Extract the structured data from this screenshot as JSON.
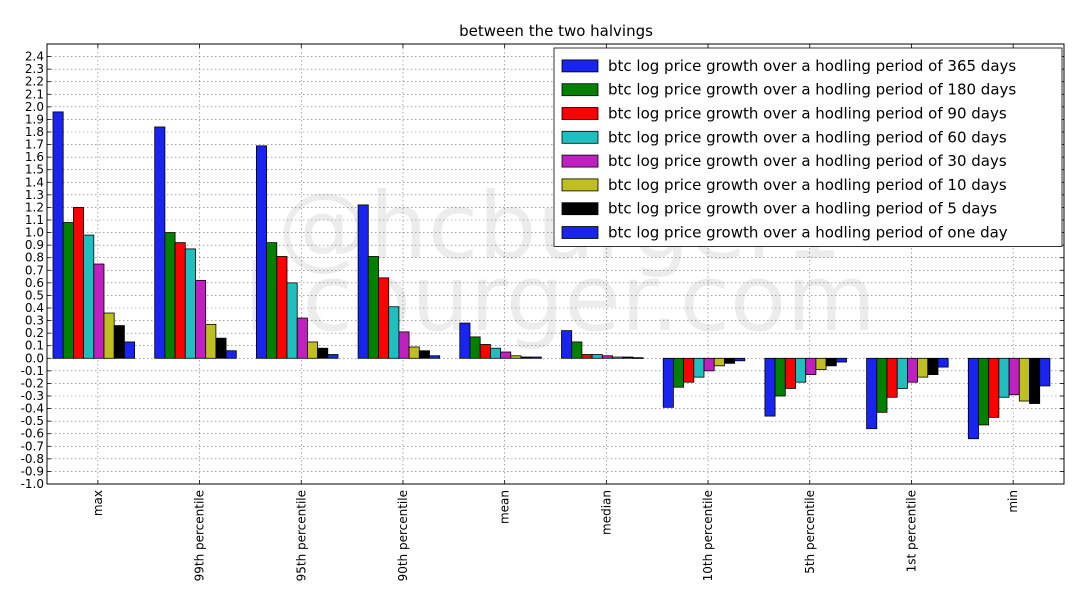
{
  "chart_data": {
    "type": "bar",
    "title": "between the two halvings",
    "xlabel": "",
    "ylabel": "",
    "ylim": [
      -1.0,
      2.5
    ],
    "ytick_step": 0.1,
    "grid": true,
    "legend_position": "top-right",
    "categories": [
      "max",
      "99th percentile",
      "95th percentile",
      "90th percentile",
      "mean",
      "median",
      "10th percentile",
      "5th percentile",
      "1st percentile",
      "min"
    ],
    "series": [
      {
        "name": "btc log price growth over a hodling period of 365 days",
        "color": "#1a24f0",
        "values": [
          1.96,
          1.84,
          1.69,
          1.22,
          0.28,
          0.22,
          -0.39,
          -0.46,
          -0.56,
          -0.64
        ]
      },
      {
        "name": "btc log price growth over a hodling period of 180 days",
        "color": "#008000",
        "values": [
          1.08,
          1.0,
          0.92,
          0.81,
          0.17,
          0.13,
          -0.23,
          -0.3,
          -0.43,
          -0.53
        ]
      },
      {
        "name": "btc log price growth over a hodling period of 90 days",
        "color": "#ff0000",
        "values": [
          1.2,
          0.92,
          0.81,
          0.64,
          0.11,
          0.03,
          -0.19,
          -0.24,
          -0.31,
          -0.47
        ]
      },
      {
        "name": "btc log price growth over a hodling period of 60 days",
        "color": "#20bfbf",
        "values": [
          0.98,
          0.87,
          0.6,
          0.41,
          0.08,
          0.03,
          -0.15,
          -0.19,
          -0.24,
          -0.31
        ]
      },
      {
        "name": "btc log price growth over a hodling period of 30 days",
        "color": "#bf20bf",
        "values": [
          0.75,
          0.62,
          0.32,
          0.21,
          0.05,
          0.02,
          -0.1,
          -0.13,
          -0.19,
          -0.29
        ]
      },
      {
        "name": "btc log price growth over a hodling period of 10 days",
        "color": "#bfbf20",
        "values": [
          0.36,
          0.27,
          0.13,
          0.09,
          0.02,
          0.01,
          -0.06,
          -0.09,
          -0.15,
          -0.34
        ]
      },
      {
        "name": "btc log price growth over a hodling period of 5 days",
        "color": "#000000",
        "values": [
          0.26,
          0.16,
          0.08,
          0.06,
          0.01,
          0.01,
          -0.04,
          -0.06,
          -0.13,
          -0.36
        ]
      },
      {
        "name": "btc log price growth over a hodling period of one day",
        "color": "#1a24f0",
        "values": [
          0.13,
          0.06,
          0.03,
          0.02,
          0.01,
          0.005,
          -0.02,
          -0.03,
          -0.07,
          -0.22
        ]
      }
    ]
  },
  "watermark": {
    "line1": "@hcburger1",
    "line2": "hcburger.com"
  }
}
